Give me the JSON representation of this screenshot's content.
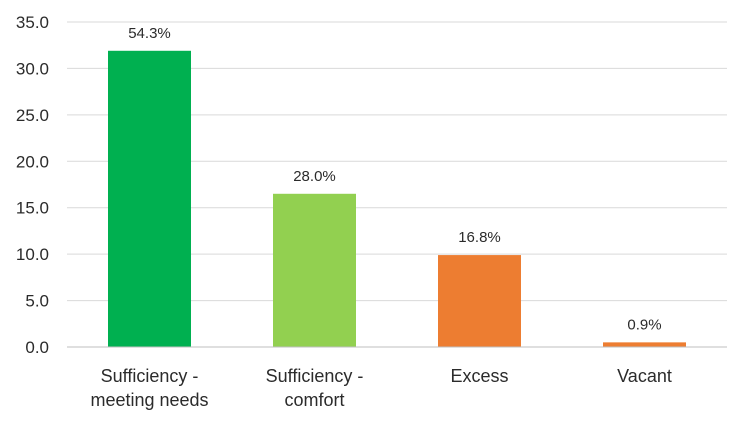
{
  "chart_data": {
    "type": "bar",
    "title": "",
    "xlabel": "",
    "ylabel": "",
    "ylim": [
      0,
      35
    ],
    "yticks": [
      "0.0",
      "5.0",
      "10.0",
      "15.0",
      "20.0",
      "25.0",
      "30.0",
      "35.0"
    ],
    "ytick_values": [
      0,
      5,
      10,
      15,
      20,
      25,
      30,
      35
    ],
    "grid": true,
    "categories": [
      [
        "Sufficiency -",
        "meeting needs"
      ],
      [
        "Sufficiency -",
        "comfort"
      ],
      [
        "Excess"
      ],
      [
        "Vacant"
      ]
    ],
    "values": [
      31.9,
      16.5,
      9.9,
      0.5
    ],
    "data_labels": [
      "54.3%",
      "28.0%",
      "16.8%",
      "0.9%"
    ],
    "colors": [
      "#00b050",
      "#92d050",
      "#ed7d31",
      "#ed7d31"
    ]
  }
}
